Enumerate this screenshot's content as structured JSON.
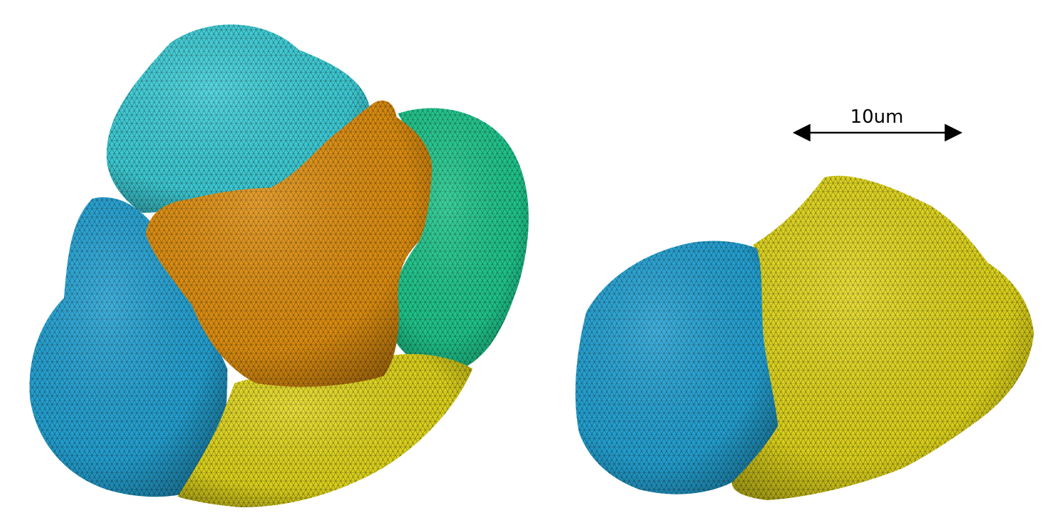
{
  "scale_bar": {
    "label": "10um"
  },
  "colors": {
    "cyan": "#3fd6e0",
    "sky_blue": "#24a9dd",
    "teal_green": "#1fcf92",
    "orange": "#e8940f",
    "yellow": "#e8dd1b",
    "mesh_line": "#111111"
  },
  "objects": [
    {
      "name": "left-cell-cluster",
      "parts": [
        "cyan",
        "teal-green",
        "sky-blue",
        "orange",
        "yellow"
      ]
    },
    {
      "name": "right-cell-pair",
      "parts": [
        "sky-blue",
        "yellow"
      ]
    }
  ]
}
